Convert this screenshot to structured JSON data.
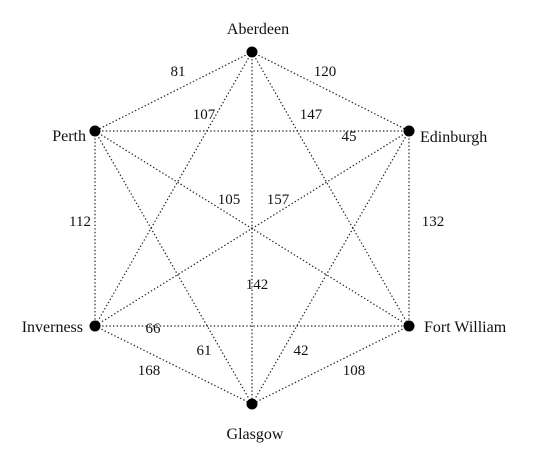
{
  "cities": [
    {
      "id": "aberdeen",
      "name": "Aberdeen"
    },
    {
      "id": "edinburgh",
      "name": "Edinburgh"
    },
    {
      "id": "fortwilliam",
      "name": "Fort William"
    },
    {
      "id": "glasgow",
      "name": "Glasgow"
    },
    {
      "id": "inverness",
      "name": "Inverness"
    },
    {
      "id": "perth",
      "name": "Perth"
    }
  ],
  "edges": [
    {
      "from": "aberdeen",
      "to": "perth",
      "distance": "81"
    },
    {
      "from": "aberdeen",
      "to": "edinburgh",
      "distance": "120"
    },
    {
      "from": "aberdeen",
      "to": "inverness",
      "distance": "107"
    },
    {
      "from": "aberdeen",
      "to": "fortwilliam",
      "distance": "147"
    },
    {
      "from": "aberdeen",
      "to": "glasgow",
      "distance": "142"
    },
    {
      "from": "perth",
      "to": "edinburgh",
      "distance": "45"
    },
    {
      "from": "perth",
      "to": "inverness",
      "distance": "112"
    },
    {
      "from": "perth",
      "to": "fortwilliam",
      "distance": "105"
    },
    {
      "from": "perth",
      "to": "glasgow",
      "distance": "61"
    },
    {
      "from": "edinburgh",
      "to": "inverness",
      "distance": "157"
    },
    {
      "from": "edinburgh",
      "to": "fortwilliam",
      "distance": "132"
    },
    {
      "from": "edinburgh",
      "to": "glasgow",
      "distance": "42"
    },
    {
      "from": "inverness",
      "to": "fortwilliam",
      "distance": "66"
    },
    {
      "from": "inverness",
      "to": "glasgow",
      "distance": "168"
    },
    {
      "from": "fortwilliam",
      "to": "glasgow",
      "distance": "108"
    }
  ]
}
